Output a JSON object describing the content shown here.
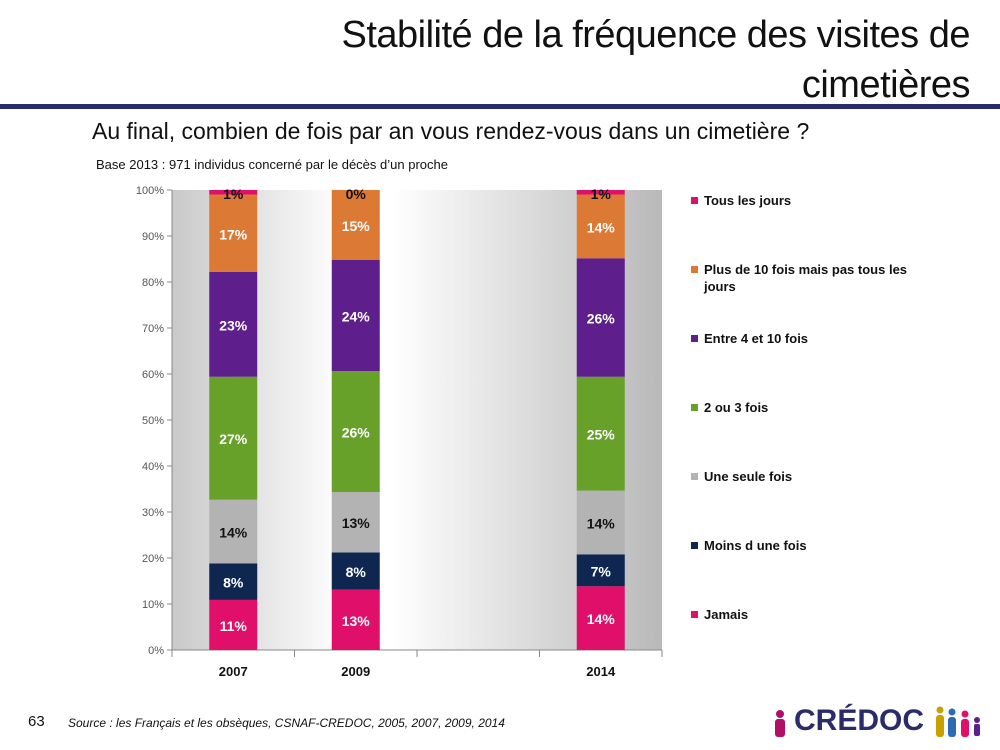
{
  "header": {
    "title": "Stabilité de la fréquence des visites de cimetières"
  },
  "question": "Au final, combien de fois par an vous rendez-vous dans un cimetière ?",
  "base_note": "Base 2013 : 971 individus concerné par le décès d’un proche",
  "footer": {
    "page_number": "63",
    "source": "Source : les Français et les obsèques, CSNAF-CREDOC, 2005, 2007, 2009, 2014",
    "logo_text": "CRÉDOC"
  },
  "chart_data": {
    "type": "bar",
    "stacked": true,
    "percent_stacked": true,
    "categories": [
      "2007",
      "2009",
      "",
      "2014"
    ],
    "ylim": [
      0,
      100
    ],
    "yticks": [
      "0%",
      "10%",
      "20%",
      "30%",
      "40%",
      "50%",
      "60%",
      "70%",
      "80%",
      "90%",
      "100%"
    ],
    "legend_position": "right",
    "series": [
      {
        "name": "Jamais",
        "color": "#e0106a",
        "values": [
          11,
          13,
          null,
          14
        ],
        "labels": [
          "11%",
          "13%",
          "",
          "14%"
        ]
      },
      {
        "name": "Moins d une fois",
        "color": "#0f2650",
        "values": [
          8,
          8,
          null,
          7
        ],
        "labels": [
          "8%",
          "8%",
          "",
          "7%"
        ]
      },
      {
        "name": "Une seule fois",
        "color": "#b3b3b3",
        "values": [
          14,
          13,
          null,
          14
        ],
        "labels": [
          "14%",
          "13%",
          "",
          "14%"
        ]
      },
      {
        "name": "2 ou 3 fois",
        "color": "#67a12a",
        "values": [
          27,
          26,
          null,
          25
        ],
        "labels": [
          "27%",
          "26%",
          "",
          "25%"
        ]
      },
      {
        "name": "Entre 4 et 10 fois",
        "color": "#5e1f8c",
        "values": [
          23,
          24,
          null,
          26
        ],
        "labels": [
          "23%",
          "24%",
          "",
          "26%"
        ]
      },
      {
        "name": "Plus de 10 fois mais pas tous les jours",
        "color": "#dc7a35",
        "values": [
          17,
          15,
          null,
          14
        ],
        "labels": [
          "17%",
          "15%",
          "",
          "14%"
        ]
      },
      {
        "name": "Tous les jours",
        "color": "#e0106a",
        "values": [
          1,
          0,
          null,
          1
        ],
        "labels": [
          "1%",
          "0%",
          "",
          "1%"
        ]
      }
    ]
  }
}
